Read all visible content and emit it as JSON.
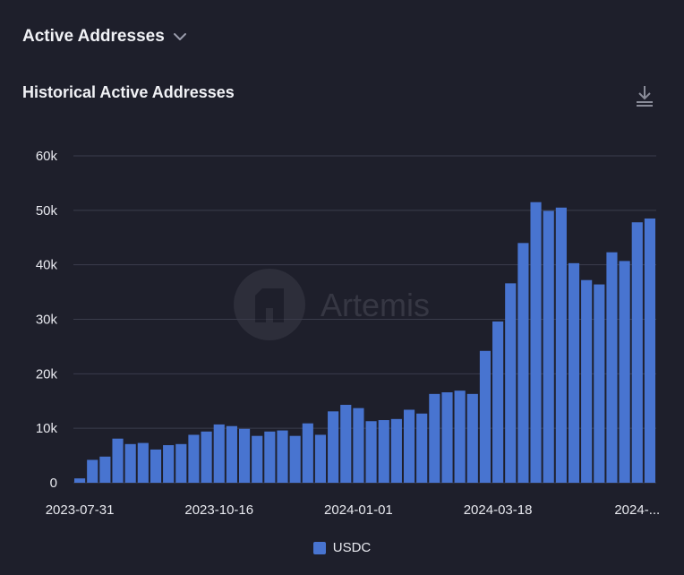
{
  "header": {
    "title": "Active Addresses"
  },
  "chart_title": "Historical Active Addresses",
  "watermark": "Artemis",
  "colors": {
    "background": "#1e1f2b",
    "bar": "#4874d0",
    "grid": "#3b3d4c",
    "text": "#e8e9ef"
  },
  "chart_data": {
    "type": "bar",
    "title": "Historical Active Addresses",
    "x_tick_labels": [
      "2023-07-31",
      "2023-10-16",
      "2024-01-01",
      "2024-03-18",
      "2024-..."
    ],
    "x_tick_indices": [
      0,
      11,
      22,
      33,
      44
    ],
    "y_ticks": [
      "0",
      "10k",
      "20k",
      "30k",
      "40k",
      "50k",
      "60k"
    ],
    "ylim": [
      0,
      60000
    ],
    "grid": true,
    "legend_position": "bottom",
    "series": [
      {
        "name": "USDC",
        "values": [
          800,
          4200,
          4800,
          8100,
          7100,
          7300,
          6100,
          6900,
          7100,
          8800,
          9400,
          10700,
          10400,
          9900,
          8600,
          9400,
          9600,
          8600,
          10900,
          8800,
          13100,
          14300,
          13700,
          11300,
          11500,
          11700,
          13400,
          12700,
          16300,
          16600,
          16900,
          16300,
          24200,
          29600,
          36600,
          44000,
          51500,
          49900,
          50500,
          40300,
          37200,
          36400,
          42300,
          40700,
          47800,
          48500
        ]
      }
    ]
  }
}
